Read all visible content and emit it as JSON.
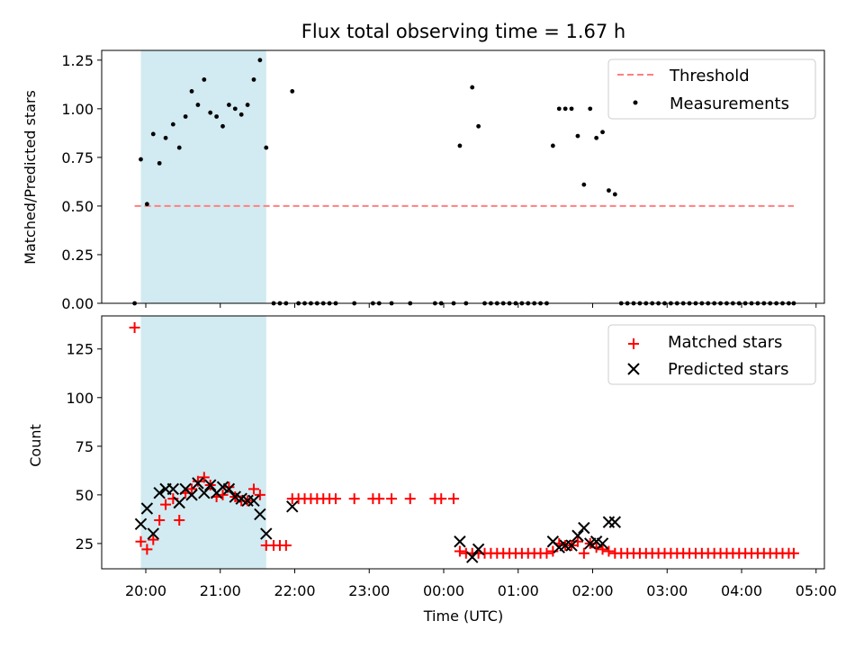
{
  "title": "Flux total observing time = 1.67 h",
  "colors": {
    "highlight": "#add8e6",
    "threshold": "#ff7f7f",
    "measurement": "#000000",
    "matched": "#ff0000",
    "predicted": "#000000"
  },
  "chart_data": [
    {
      "type": "scatter",
      "panel": "top",
      "xlabel": "",
      "ylabel": "Matched/Predicted stars",
      "ylim": [
        0,
        1.3
      ],
      "yticks": [
        0,
        0.25,
        0.5,
        0.75,
        1.0,
        1.25
      ],
      "ytick_labels": [
        "0.00",
        "0.25",
        "0.50",
        "0.75",
        "1.00",
        "1.25"
      ],
      "highlight_span": [
        "19:56",
        "21:37"
      ],
      "legend": {
        "position": "top-right",
        "entries": [
          "Threshold",
          "Measurements"
        ]
      },
      "threshold": {
        "name": "Threshold",
        "y": 0.5,
        "x_range": [
          "19:51",
          "04:42"
        ],
        "style": "dashed"
      },
      "series": [
        {
          "name": "Measurements",
          "marker": "dot",
          "points": [
            [
              "19:51",
              0
            ],
            [
              "19:56",
              0.74
            ],
            [
              "20:01",
              0.51
            ],
            [
              "20:06",
              0.87
            ],
            [
              "20:11",
              0.72
            ],
            [
              "20:16",
              0.85
            ],
            [
              "20:22",
              0.92
            ],
            [
              "20:27",
              0.8
            ],
            [
              "20:32",
              0.96
            ],
            [
              "20:37",
              1.09
            ],
            [
              "20:42",
              1.02
            ],
            [
              "20:47",
              1.15
            ],
            [
              "20:52",
              0.98
            ],
            [
              "20:57",
              0.96
            ],
            [
              "21:02",
              0.91
            ],
            [
              "21:07",
              1.02
            ],
            [
              "21:12",
              1.0
            ],
            [
              "21:17",
              0.97
            ],
            [
              "21:22",
              1.02
            ],
            [
              "21:27",
              1.15
            ],
            [
              "21:32",
              1.25
            ],
            [
              "21:37",
              0.8
            ],
            [
              "21:43",
              0
            ],
            [
              "21:48",
              0
            ],
            [
              "21:53",
              0
            ],
            [
              "21:58",
              1.09
            ],
            [
              "22:03",
              0
            ],
            [
              "22:08",
              0
            ],
            [
              "22:13",
              0
            ],
            [
              "22:18",
              0
            ],
            [
              "22:23",
              0
            ],
            [
              "22:28",
              0
            ],
            [
              "22:33",
              0
            ],
            [
              "22:48",
              0
            ],
            [
              "23:03",
              0
            ],
            [
              "23:08",
              0
            ],
            [
              "23:18",
              0
            ],
            [
              "23:33",
              0
            ],
            [
              "23:53",
              0
            ],
            [
              "23:58",
              0
            ],
            [
              "00:08",
              0
            ],
            [
              "00:13",
              0.81
            ],
            [
              "00:18",
              0
            ],
            [
              "00:23",
              1.11
            ],
            [
              "00:28",
              0.91
            ],
            [
              "00:33",
              0
            ],
            [
              "00:38",
              0
            ],
            [
              "00:43",
              0
            ],
            [
              "00:48",
              0
            ],
            [
              "00:53",
              0
            ],
            [
              "00:58",
              0
            ],
            [
              "01:03",
              0
            ],
            [
              "01:08",
              0
            ],
            [
              "01:13",
              0
            ],
            [
              "01:18",
              0
            ],
            [
              "01:23",
              0
            ],
            [
              "01:28",
              0.81
            ],
            [
              "01:33",
              1.0
            ],
            [
              "01:38",
              1.0
            ],
            [
              "01:43",
              1.0
            ],
            [
              "01:48",
              0.86
            ],
            [
              "01:53",
              0.61
            ],
            [
              "01:58",
              1.0
            ],
            [
              "02:03",
              0.85
            ],
            [
              "02:08",
              0.88
            ],
            [
              "02:13",
              0.58
            ],
            [
              "02:18",
              0.56
            ],
            [
              "02:23",
              0
            ],
            [
              "02:28",
              0
            ],
            [
              "02:33",
              0
            ],
            [
              "02:38",
              0
            ],
            [
              "02:43",
              0
            ],
            [
              "02:48",
              0
            ],
            [
              "02:53",
              0
            ],
            [
              "02:58",
              0
            ],
            [
              "03:03",
              0
            ],
            [
              "03:08",
              0
            ],
            [
              "03:13",
              0
            ],
            [
              "03:18",
              0
            ],
            [
              "03:23",
              0
            ],
            [
              "03:28",
              0
            ],
            [
              "03:33",
              0
            ],
            [
              "03:38",
              0
            ],
            [
              "03:43",
              0
            ],
            [
              "03:48",
              0
            ],
            [
              "03:53",
              0
            ],
            [
              "03:58",
              0
            ],
            [
              "04:03",
              0
            ],
            [
              "04:08",
              0
            ],
            [
              "04:13",
              0
            ],
            [
              "04:18",
              0
            ],
            [
              "04:23",
              0
            ],
            [
              "04:28",
              0
            ],
            [
              "04:33",
              0
            ],
            [
              "04:38",
              0
            ],
            [
              "04:42",
              0
            ]
          ]
        }
      ]
    },
    {
      "type": "scatter",
      "panel": "bottom",
      "xlabel": "Time (UTC)",
      "ylabel": "Count",
      "ylim": [
        12,
        142
      ],
      "yticks": [
        25,
        50,
        75,
        100,
        125
      ],
      "ytick_labels": [
        "25",
        "50",
        "75",
        "100",
        "125"
      ],
      "xticks": [
        "20:00",
        "21:00",
        "22:00",
        "23:00",
        "00:00",
        "01:00",
        "02:00",
        "03:00",
        "04:00",
        "05:00"
      ],
      "highlight_span": [
        "19:56",
        "21:37"
      ],
      "legend": {
        "position": "top-right",
        "entries": [
          "Matched stars",
          "Predicted stars"
        ]
      },
      "series": [
        {
          "name": "Matched stars",
          "marker": "plus",
          "points": [
            [
              "19:51",
              136
            ],
            [
              "19:56",
              26
            ],
            [
              "20:01",
              22
            ],
            [
              "20:06",
              27
            ],
            [
              "20:11",
              37
            ],
            [
              "20:16",
              45
            ],
            [
              "20:22",
              48
            ],
            [
              "20:27",
              37
            ],
            [
              "20:32",
              51
            ],
            [
              "20:37",
              53
            ],
            [
              "20:42",
              57
            ],
            [
              "20:47",
              59
            ],
            [
              "20:52",
              55
            ],
            [
              "20:57",
              49
            ],
            [
              "21:02",
              50
            ],
            [
              "21:07",
              54
            ],
            [
              "21:12",
              49
            ],
            [
              "21:17",
              47
            ],
            [
              "21:22",
              47
            ],
            [
              "21:27",
              53
            ],
            [
              "21:32",
              50
            ],
            [
              "21:37",
              24
            ],
            [
              "21:43",
              24
            ],
            [
              "21:48",
              24
            ],
            [
              "21:53",
              24
            ],
            [
              "21:58",
              48
            ],
            [
              "22:03",
              48
            ],
            [
              "22:08",
              48
            ],
            [
              "22:13",
              48
            ],
            [
              "22:18",
              48
            ],
            [
              "22:23",
              48
            ],
            [
              "22:28",
              48
            ],
            [
              "22:33",
              48
            ],
            [
              "22:48",
              48
            ],
            [
              "23:03",
              48
            ],
            [
              "23:08",
              48
            ],
            [
              "23:18",
              48
            ],
            [
              "23:33",
              48
            ],
            [
              "23:53",
              48
            ],
            [
              "23:58",
              48
            ],
            [
              "00:08",
              48
            ],
            [
              "00:13",
              21
            ],
            [
              "00:18",
              20
            ],
            [
              "00:23",
              20
            ],
            [
              "00:28",
              20
            ],
            [
              "00:33",
              20
            ],
            [
              "00:38",
              20
            ],
            [
              "00:43",
              20
            ],
            [
              "00:48",
              20
            ],
            [
              "00:53",
              20
            ],
            [
              "00:58",
              20
            ],
            [
              "01:03",
              20
            ],
            [
              "01:08",
              20
            ],
            [
              "01:13",
              20
            ],
            [
              "01:18",
              20
            ],
            [
              "01:23",
              20
            ],
            [
              "01:28",
              21
            ],
            [
              "01:33",
              25
            ],
            [
              "01:38",
              24
            ],
            [
              "01:43",
              24
            ],
            [
              "01:48",
              26
            ],
            [
              "01:53",
              20
            ],
            [
              "01:58",
              25
            ],
            [
              "02:03",
              23
            ],
            [
              "02:08",
              22
            ],
            [
              "02:13",
              21
            ],
            [
              "02:18",
              20
            ],
            [
              "02:23",
              20
            ],
            [
              "02:28",
              20
            ],
            [
              "02:33",
              20
            ],
            [
              "02:38",
              20
            ],
            [
              "02:43",
              20
            ],
            [
              "02:48",
              20
            ],
            [
              "02:53",
              20
            ],
            [
              "02:58",
              20
            ],
            [
              "03:03",
              20
            ],
            [
              "03:08",
              20
            ],
            [
              "03:13",
              20
            ],
            [
              "03:18",
              20
            ],
            [
              "03:23",
              20
            ],
            [
              "03:28",
              20
            ],
            [
              "03:33",
              20
            ],
            [
              "03:38",
              20
            ],
            [
              "03:43",
              20
            ],
            [
              "03:48",
              20
            ],
            [
              "03:53",
              20
            ],
            [
              "03:58",
              20
            ],
            [
              "04:03",
              20
            ],
            [
              "04:08",
              20
            ],
            [
              "04:13",
              20
            ],
            [
              "04:18",
              20
            ],
            [
              "04:23",
              20
            ],
            [
              "04:28",
              20
            ],
            [
              "04:33",
              20
            ],
            [
              "04:38",
              20
            ],
            [
              "04:42",
              20
            ]
          ]
        },
        {
          "name": "Predicted stars",
          "marker": "x",
          "points": [
            [
              "19:56",
              35
            ],
            [
              "20:01",
              43
            ],
            [
              "20:06",
              30
            ],
            [
              "20:11",
              51
            ],
            [
              "20:16",
              53
            ],
            [
              "20:22",
              53
            ],
            [
              "20:27",
              46
            ],
            [
              "20:32",
              53
            ],
            [
              "20:37",
              50
            ],
            [
              "20:42",
              56
            ],
            [
              "20:47",
              51
            ],
            [
              "20:52",
              55
            ],
            [
              "20:57",
              51
            ],
            [
              "21:02",
              54
            ],
            [
              "21:07",
              53
            ],
            [
              "21:12",
              49
            ],
            [
              "21:17",
              48
            ],
            [
              "21:22",
              47
            ],
            [
              "21:27",
              47
            ],
            [
              "21:32",
              40
            ],
            [
              "21:37",
              30
            ],
            [
              "21:58",
              44
            ],
            [
              "00:13",
              26
            ],
            [
              "00:23",
              18
            ],
            [
              "00:28",
              22
            ],
            [
              "01:28",
              26
            ],
            [
              "01:33",
              23
            ],
            [
              "01:38",
              24
            ],
            [
              "01:43",
              24
            ],
            [
              "01:48",
              29
            ],
            [
              "01:53",
              33
            ],
            [
              "01:58",
              25
            ],
            [
              "02:03",
              26
            ],
            [
              "02:08",
              25
            ],
            [
              "02:13",
              36
            ],
            [
              "02:18",
              36
            ]
          ]
        }
      ]
    }
  ]
}
